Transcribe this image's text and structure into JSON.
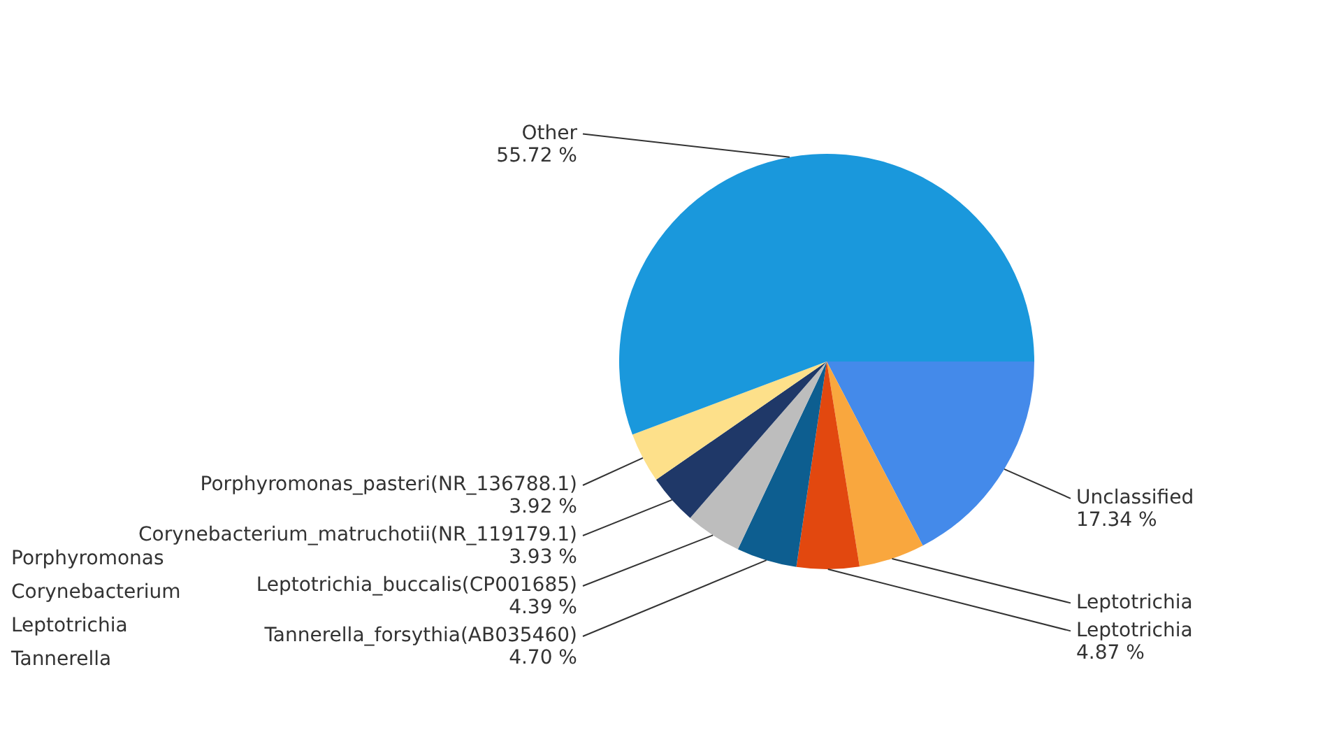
{
  "chart_data": {
    "type": "pie",
    "categories": [
      "Unclassified",
      "Leptotrichia",
      "Leptotrichia",
      "Tannerella_forsythia(AB035460)",
      "Leptotrichia_buccalis(CP001685)",
      "Corynebacterium_matruchotii(NR_119179.1)",
      "Porphyromonas_pasteri(NR_136788.1)",
      "Other"
    ],
    "values": [
      17.34,
      5.13,
      4.87,
      4.7,
      4.39,
      3.93,
      3.92,
      55.72
    ],
    "value_labels": [
      "17.34 %",
      null,
      "4.87 %",
      "4.70 %",
      "4.39 %",
      "3.93 %",
      "3.92 %",
      "55.72 %"
    ],
    "colors": [
      "#448aea",
      "#f9a73e",
      "#e2480f",
      "#0d5e90",
      "#bdbdbd",
      "#1f3868",
      "#fde08a",
      "#1a98dc"
    ],
    "annotations": [
      "Porphyromonas",
      "Corynebacterium",
      "Leptotrichia",
      "Tannerella"
    ],
    "legend": false
  }
}
